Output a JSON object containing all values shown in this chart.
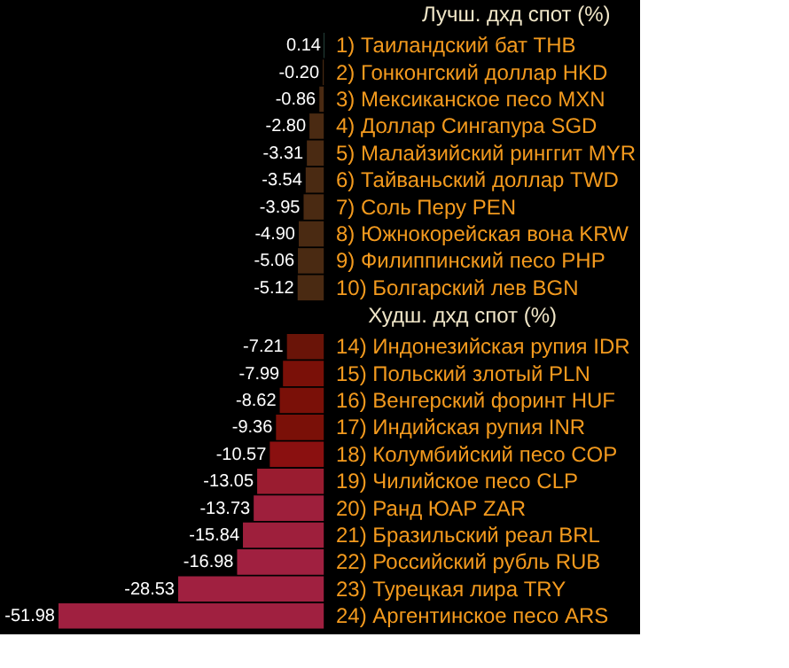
{
  "chart_data": [
    {
      "type": "bar",
      "orientation": "horizontal",
      "title": "Лучш. дхд спот (%)",
      "categories": [
        "1) Таиландский бат THB",
        "2) Гонконгский доллар HKD",
        "3) Мексиканское песо MXN",
        "4) Доллар Сингапура SGD",
        "5) Малайзийский ринггит MYR",
        "6) Тайваньский доллар TWD",
        "7) Соль Перу PEN",
        "8) Южнокорейская вона KRW",
        "9) Филиппинский песо PHP",
        "10) Болгарский лев BGN"
      ],
      "values": [
        0.14,
        -0.2,
        -0.86,
        -2.8,
        -3.31,
        -3.54,
        -3.95,
        -4.9,
        -5.06,
        -5.12
      ],
      "value_labels": [
        "0.14",
        "-0.20",
        "-0.86",
        "-2.80",
        "-3.31",
        "-3.54",
        "-3.95",
        "-4.90",
        "-5.06",
        "-5.12"
      ],
      "colors": [
        "#2e5048",
        "#4a2a12",
        "#4a2a12",
        "#4a2a12",
        "#4a2a12",
        "#4a2a12",
        "#4a2a12",
        "#4a2a12",
        "#4a2a12",
        "#4a2a12"
      ],
      "tick_labels": "y",
      "grid": false
    },
    {
      "type": "bar",
      "orientation": "horizontal",
      "title": "Худш. дхд спот (%)",
      "categories": [
        "14) Индонезийская рупия IDR",
        "15) Польский злотый PLN",
        "16) Венгерский форинт HUF",
        "17) Индийская рупия INR",
        "18) Колумбийский песо COP",
        "19) Чилийское песо CLP",
        "20) Ранд ЮАР ZAR",
        "21) Бразильский реал BRL",
        "22) Российский рубль RUB",
        "23) Турецкая лира TRY",
        "24) Аргентинское песо ARS"
      ],
      "values": [
        -7.21,
        -7.99,
        -8.62,
        -9.36,
        -10.57,
        -13.05,
        -13.73,
        -15.84,
        -16.98,
        -28.53,
        -51.98
      ],
      "value_labels": [
        "-7.21",
        "-7.99",
        "-8.62",
        "-9.36",
        "-10.57",
        "-13.05",
        "-13.73",
        "-15.84",
        "-16.98",
        "-28.53",
        "-51.98"
      ],
      "colors": [
        "#6a1408",
        "#7a1008",
        "#7a1008",
        "#7a1008",
        "#8a1010",
        "#9a1c30",
        "#9e1f3c",
        "#9e1f3c",
        "#a02040",
        "#a02040",
        "#a02040"
      ],
      "tick_labels": "y",
      "grid": false
    }
  ]
}
